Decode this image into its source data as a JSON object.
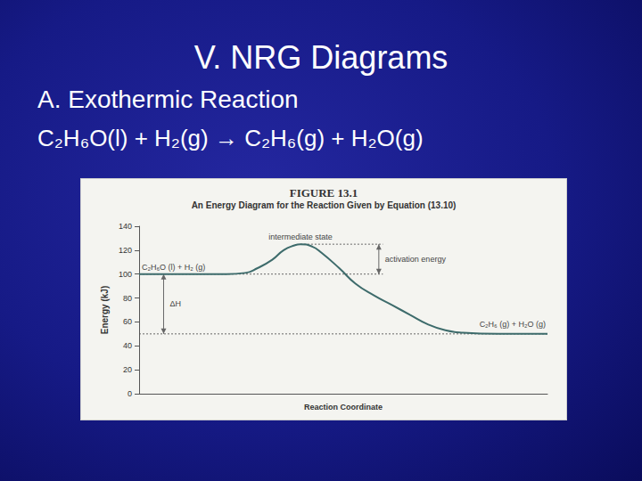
{
  "slide": {
    "title": "V. NRG Diagrams",
    "heading": "A. Exothermic Reaction",
    "equation": "C₂H₆O(l) + H₂(g) → C₂H₆(g) + H₂O(g)"
  },
  "chart_data": {
    "type": "line",
    "title": "FIGURE 13.1",
    "subtitle": "An Energy Diagram for the Reaction Given by Equation (13.10)",
    "x_label": "Reaction Coordinate",
    "y_label": "Energy (kJ)",
    "x": [
      0,
      20.6,
      26,
      29,
      32.6,
      35.4,
      38,
      39.5,
      42.4,
      44.6,
      49,
      53,
      57.6,
      62,
      66.3,
      70.7,
      75,
      79.3,
      88,
      100
    ],
    "values": [
      100,
      100,
      101,
      105,
      112,
      120,
      124,
      125,
      123,
      118,
      105,
      92,
      82,
      74,
      66,
      58,
      53,
      51,
      50,
      50
    ],
    "color": "#3d6b6b",
    "line_style": "solid",
    "xlim": [
      0,
      100
    ],
    "ylim": [
      0,
      140
    ],
    "yticks": [
      0,
      20,
      40,
      60,
      80,
      100,
      120,
      140
    ],
    "grid": false,
    "tick_labels": "y",
    "annotations": {
      "reactants": "C₂H₆O (l) + H₂ (g)",
      "products": "C₂H₆ (g) + H₂O (g)",
      "peak": "intermediate state",
      "activation_energy": "activation energy",
      "delta_h": "ΔH"
    }
  }
}
